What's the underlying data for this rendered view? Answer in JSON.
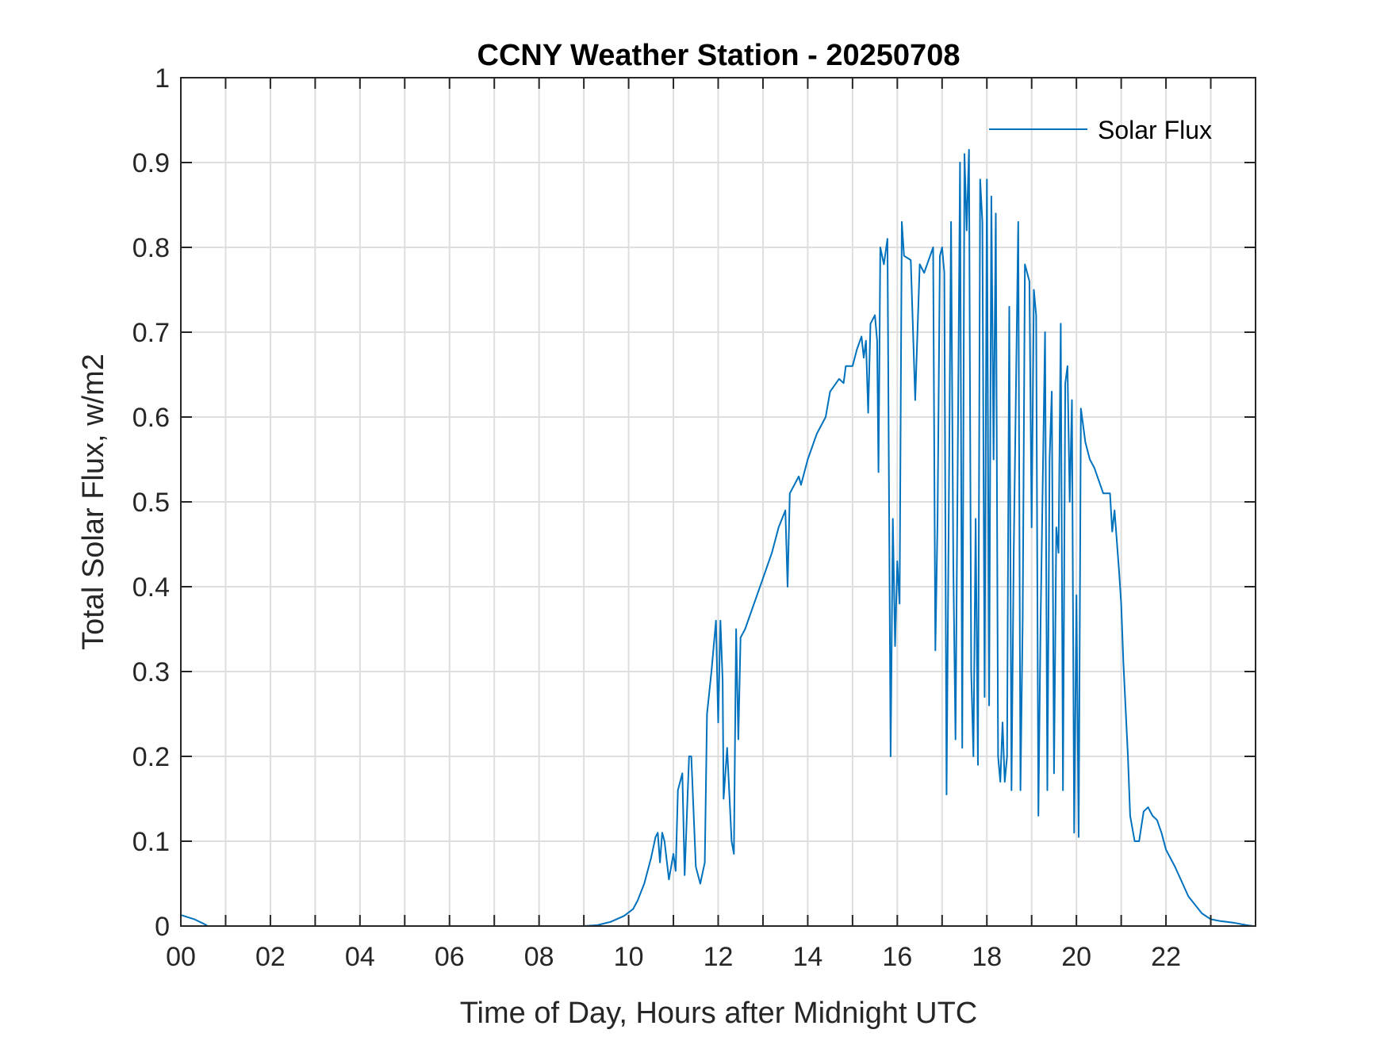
{
  "chart_data": {
    "type": "line",
    "title": "CCNY Weather Station - 20250708",
    "xlabel": "Time of Day, Hours after Midnight UTC",
    "ylabel": "Total Solar Flux, w/m2",
    "xlim": [
      0,
      24
    ],
    "ylim": [
      0,
      1
    ],
    "xticks": [
      0,
      2,
      4,
      6,
      8,
      10,
      12,
      14,
      16,
      18,
      20,
      22
    ],
    "xtick_labels": [
      "00",
      "02",
      "04",
      "06",
      "08",
      "10",
      "12",
      "14",
      "16",
      "18",
      "20",
      "22"
    ],
    "yticks": [
      0,
      0.1,
      0.2,
      0.3,
      0.4,
      0.5,
      0.6,
      0.7,
      0.8,
      0.9,
      1
    ],
    "ytick_labels": [
      "0",
      "0.1",
      "0.2",
      "0.3",
      "0.4",
      "0.5",
      "0.6",
      "0.7",
      "0.8",
      "0.9",
      "1"
    ],
    "grid": true,
    "legend_placement": "top-right",
    "series": [
      {
        "name": "Solar Flux",
        "color": "#0072BD",
        "points": [
          [
            0,
            0.013
          ],
          [
            0.3,
            0.008
          ],
          [
            0.5,
            0.003
          ],
          [
            0.6,
            0
          ],
          [
            9.0,
            0
          ],
          [
            9.3,
            0.001
          ],
          [
            9.6,
            0.005
          ],
          [
            9.9,
            0.012
          ],
          [
            10.1,
            0.02
          ],
          [
            10.2,
            0.03
          ],
          [
            10.35,
            0.05
          ],
          [
            10.5,
            0.08
          ],
          [
            10.6,
            0.105
          ],
          [
            10.65,
            0.11
          ],
          [
            10.7,
            0.075
          ],
          [
            10.75,
            0.11
          ],
          [
            10.8,
            0.1
          ],
          [
            10.9,
            0.055
          ],
          [
            11.0,
            0.085
          ],
          [
            11.05,
            0.065
          ],
          [
            11.1,
            0.16
          ],
          [
            11.2,
            0.18
          ],
          [
            11.25,
            0.06
          ],
          [
            11.35,
            0.2
          ],
          [
            11.4,
            0.2
          ],
          [
            11.5,
            0.07
          ],
          [
            11.6,
            0.05
          ],
          [
            11.7,
            0.075
          ],
          [
            11.75,
            0.25
          ],
          [
            11.85,
            0.3
          ],
          [
            11.95,
            0.36
          ],
          [
            12.0,
            0.24
          ],
          [
            12.05,
            0.36
          ],
          [
            12.1,
            0.29
          ],
          [
            12.12,
            0.15
          ],
          [
            12.2,
            0.21
          ],
          [
            12.3,
            0.1
          ],
          [
            12.35,
            0.085
          ],
          [
            12.4,
            0.35
          ],
          [
            12.45,
            0.22
          ],
          [
            12.5,
            0.34
          ],
          [
            12.6,
            0.35
          ],
          [
            12.8,
            0.38
          ],
          [
            13.0,
            0.41
          ],
          [
            13.2,
            0.44
          ],
          [
            13.35,
            0.47
          ],
          [
            13.5,
            0.49
          ],
          [
            13.55,
            0.4
          ],
          [
            13.6,
            0.51
          ],
          [
            13.8,
            0.53
          ],
          [
            13.85,
            0.52
          ],
          [
            14.0,
            0.55
          ],
          [
            14.2,
            0.58
          ],
          [
            14.4,
            0.6
          ],
          [
            14.5,
            0.63
          ],
          [
            14.7,
            0.645
          ],
          [
            14.8,
            0.64
          ],
          [
            14.85,
            0.66
          ],
          [
            15.0,
            0.66
          ],
          [
            15.1,
            0.68
          ],
          [
            15.2,
            0.695
          ],
          [
            15.25,
            0.67
          ],
          [
            15.3,
            0.69
          ],
          [
            15.35,
            0.605
          ],
          [
            15.4,
            0.71
          ],
          [
            15.5,
            0.72
          ],
          [
            15.55,
            0.69
          ],
          [
            15.58,
            0.535
          ],
          [
            15.62,
            0.8
          ],
          [
            15.7,
            0.78
          ],
          [
            15.78,
            0.81
          ],
          [
            15.85,
            0.2
          ],
          [
            15.9,
            0.48
          ],
          [
            15.95,
            0.33
          ],
          [
            16.0,
            0.43
          ],
          [
            16.05,
            0.38
          ],
          [
            16.1,
            0.83
          ],
          [
            16.15,
            0.79
          ],
          [
            16.3,
            0.785
          ],
          [
            16.4,
            0.62
          ],
          [
            16.5,
            0.78
          ],
          [
            16.6,
            0.77
          ],
          [
            16.8,
            0.8
          ],
          [
            16.85,
            0.325
          ],
          [
            16.9,
            0.48
          ],
          [
            16.95,
            0.79
          ],
          [
            17.0,
            0.8
          ],
          [
            17.05,
            0.77
          ],
          [
            17.1,
            0.155
          ],
          [
            17.2,
            0.83
          ],
          [
            17.25,
            0.43
          ],
          [
            17.3,
            0.22
          ],
          [
            17.35,
            0.56
          ],
          [
            17.4,
            0.9
          ],
          [
            17.45,
            0.21
          ],
          [
            17.5,
            0.91
          ],
          [
            17.55,
            0.82
          ],
          [
            17.6,
            0.915
          ],
          [
            17.65,
            0.3
          ],
          [
            17.7,
            0.2
          ],
          [
            17.75,
            0.48
          ],
          [
            17.8,
            0.19
          ],
          [
            17.85,
            0.88
          ],
          [
            17.9,
            0.83
          ],
          [
            17.95,
            0.27
          ],
          [
            18.0,
            0.88
          ],
          [
            18.05,
            0.26
          ],
          [
            18.1,
            0.86
          ],
          [
            18.15,
            0.55
          ],
          [
            18.2,
            0.84
          ],
          [
            18.25,
            0.2
          ],
          [
            18.3,
            0.17
          ],
          [
            18.35,
            0.24
          ],
          [
            18.4,
            0.17
          ],
          [
            18.45,
            0.2
          ],
          [
            18.5,
            0.73
          ],
          [
            18.55,
            0.16
          ],
          [
            18.6,
            0.44
          ],
          [
            18.7,
            0.83
          ],
          [
            18.75,
            0.16
          ],
          [
            18.8,
            0.36
          ],
          [
            18.85,
            0.78
          ],
          [
            18.95,
            0.76
          ],
          [
            19.0,
            0.47
          ],
          [
            19.05,
            0.75
          ],
          [
            19.1,
            0.72
          ],
          [
            19.15,
            0.13
          ],
          [
            19.2,
            0.36
          ],
          [
            19.3,
            0.7
          ],
          [
            19.35,
            0.16
          ],
          [
            19.4,
            0.55
          ],
          [
            19.45,
            0.63
          ],
          [
            19.5,
            0.18
          ],
          [
            19.55,
            0.47
          ],
          [
            19.6,
            0.44
          ],
          [
            19.65,
            0.71
          ],
          [
            19.7,
            0.16
          ],
          [
            19.75,
            0.64
          ],
          [
            19.8,
            0.66
          ],
          [
            19.85,
            0.5
          ],
          [
            19.9,
            0.62
          ],
          [
            19.95,
            0.11
          ],
          [
            20.0,
            0.39
          ],
          [
            20.05,
            0.105
          ],
          [
            20.1,
            0.61
          ],
          [
            20.2,
            0.57
          ],
          [
            20.3,
            0.55
          ],
          [
            20.4,
            0.54
          ],
          [
            20.6,
            0.51
          ],
          [
            20.75,
            0.51
          ],
          [
            20.8,
            0.465
          ],
          [
            20.85,
            0.49
          ],
          [
            20.95,
            0.42
          ],
          [
            21.0,
            0.38
          ],
          [
            21.05,
            0.31
          ],
          [
            21.15,
            0.2
          ],
          [
            21.2,
            0.13
          ],
          [
            21.3,
            0.1
          ],
          [
            21.4,
            0.1
          ],
          [
            21.5,
            0.135
          ],
          [
            21.6,
            0.14
          ],
          [
            21.7,
            0.13
          ],
          [
            21.8,
            0.125
          ],
          [
            21.9,
            0.11
          ],
          [
            22.0,
            0.09
          ],
          [
            22.2,
            0.07
          ],
          [
            22.5,
            0.035
          ],
          [
            22.8,
            0.015
          ],
          [
            23.0,
            0.008
          ],
          [
            23.2,
            0.006
          ],
          [
            23.5,
            0.004
          ],
          [
            23.8,
            0.001
          ],
          [
            23.95,
            0
          ]
        ]
      }
    ]
  }
}
